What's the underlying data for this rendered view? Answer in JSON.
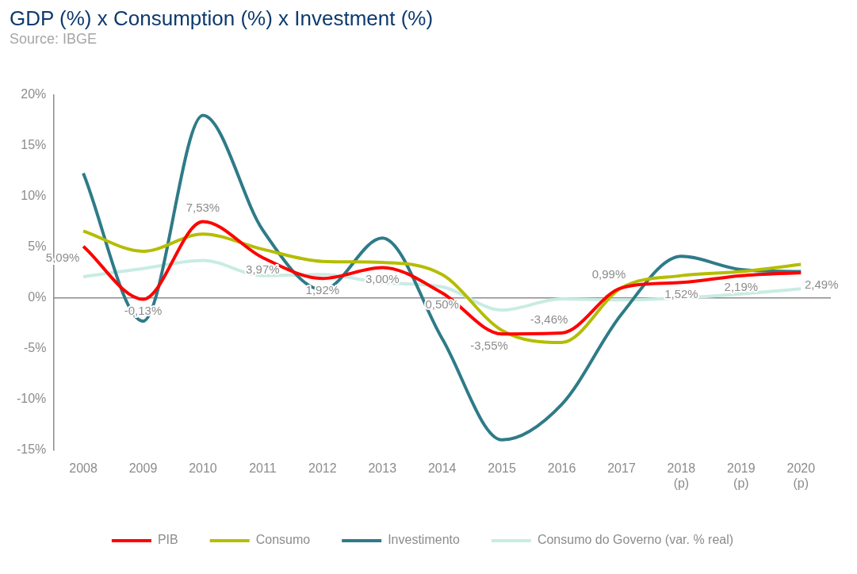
{
  "chart_data": {
    "type": "line",
    "title": "GDP (%) x Consumption (%) x Investment (%)",
    "subtitle": "Source: IBGE",
    "categories": [
      "2008",
      "2009",
      "2010",
      "2011",
      "2012",
      "2013",
      "2014",
      "2015",
      "2016",
      "2017",
      "2018 (p)",
      "2019 (p)",
      "2020 (p)"
    ],
    "series": [
      {
        "name": "PIB",
        "color": "#ff0000",
        "values": [
          5.09,
          -0.13,
          7.53,
          3.97,
          1.92,
          3.0,
          0.5,
          -3.55,
          -3.46,
          0.99,
          1.52,
          2.19,
          2.49
        ],
        "value_labels": [
          "5,09%",
          "-0,13%",
          "7,53%",
          "3,97%",
          "1,92%",
          "3,00%",
          "0,50%",
          "-3,55%",
          "-3,46%",
          "0,99%",
          "1,52%",
          "2,19%",
          "2,49%"
        ]
      },
      {
        "name": "Consumo",
        "color": "#b5bd00",
        "values": [
          6.6,
          4.6,
          6.3,
          4.8,
          3.6,
          3.5,
          2.3,
          -3.2,
          -4.4,
          1.0,
          2.2,
          2.6,
          3.3
        ]
      },
      {
        "name": "Investimento",
        "color": "#2e7b88",
        "values": [
          12.3,
          -2.3,
          18.0,
          6.7,
          0.8,
          5.9,
          -4.0,
          -14.0,
          -10.5,
          -1.6,
          4.1,
          2.8,
          2.6
        ]
      },
      {
        "name": "Consumo do Governo (var. % real)",
        "color": "#c8ece3",
        "values": [
          2.1,
          2.9,
          3.7,
          2.2,
          2.3,
          1.5,
          1.1,
          -1.2,
          -0.1,
          -0.2,
          0.0,
          0.4,
          0.9
        ]
      }
    ],
    "ylim": [
      -15,
      20
    ],
    "yticks": [
      {
        "value": -15,
        "label": "-15%"
      },
      {
        "value": -10,
        "label": "-10%"
      },
      {
        "value": -5,
        "label": "-5%"
      },
      {
        "value": 0,
        "label": "0%"
      },
      {
        "value": 5,
        "label": "5%"
      },
      {
        "value": 10,
        "label": "10%"
      },
      {
        "value": 15,
        "label": "15%"
      },
      {
        "value": 20,
        "label": "20%"
      }
    ],
    "ref_lines": [
      {
        "axis": "y",
        "value": 0,
        "color": "#8c8c8c"
      }
    ],
    "legend": "bottom",
    "grid": false,
    "marker": "none",
    "line_style": "solid"
  }
}
